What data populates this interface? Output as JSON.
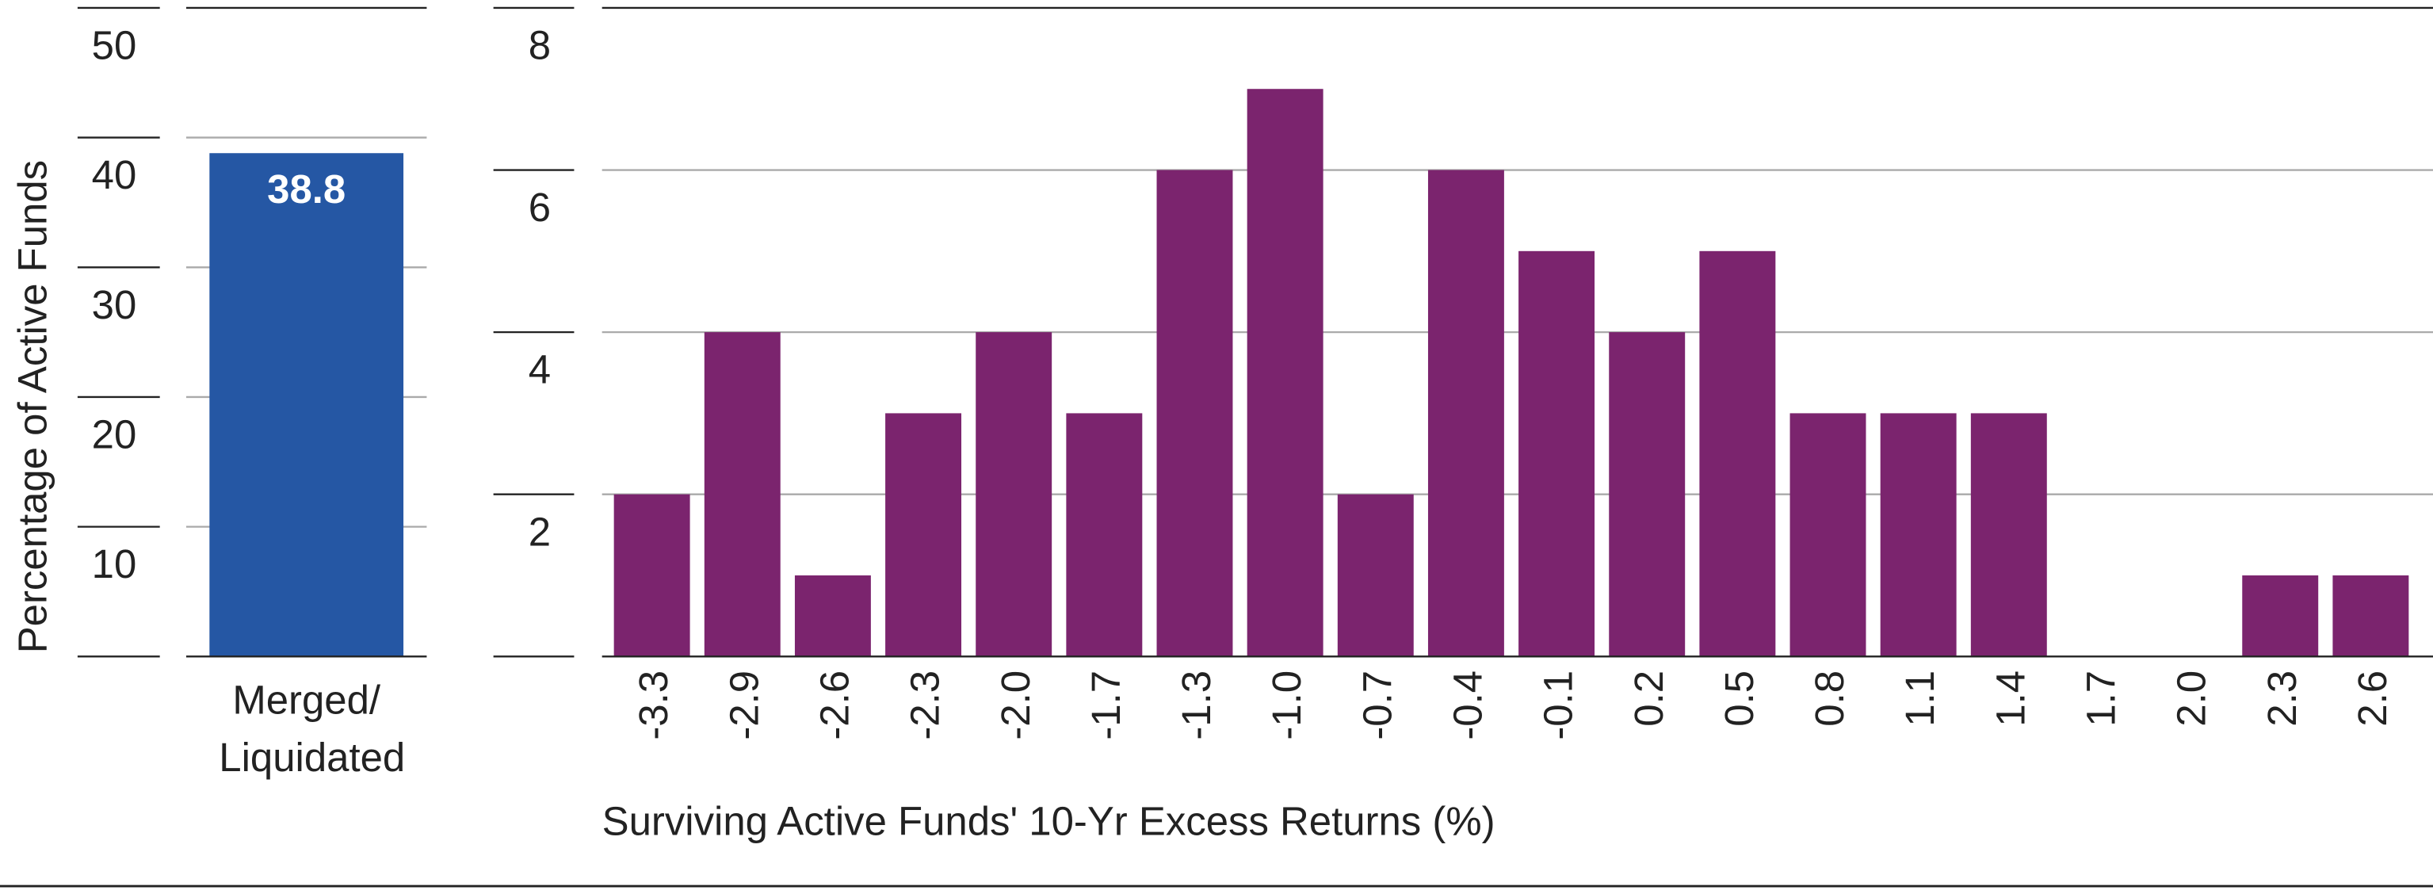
{
  "chart_data": [
    {
      "type": "bar",
      "ylabel": "Percentage of Active Funds",
      "categories": [
        "Merged/ Liquidated"
      ],
      "values": [
        38.8
      ],
      "color": "#2557a4",
      "ylim": [
        0,
        50
      ],
      "yticks": [
        10,
        20,
        30,
        40,
        50
      ],
      "grid": true
    },
    {
      "type": "bar",
      "xlabel": "Surviving Active Funds' 10-Yr Excess Returns (%)",
      "categories": [
        "-3.3",
        "-2.9",
        "-2.6",
        "-2.3",
        "-2.0",
        "-1.7",
        "-1.3",
        "-1.0",
        "-0.7",
        "-0.4",
        "-0.1",
        "0.2",
        "0.5",
        "0.8",
        "1.1",
        "1.4",
        "1.7",
        "2.0",
        "2.3",
        "2.6"
      ],
      "values": [
        2,
        4,
        1,
        3,
        4,
        3,
        6,
        7,
        2,
        6,
        5,
        4,
        5,
        3,
        3,
        3,
        0,
        0,
        1,
        1
      ],
      "color": "#7b246e",
      "ylim": [
        0,
        8
      ],
      "yticks": [
        2,
        4,
        6,
        8
      ],
      "grid": true
    }
  ]
}
